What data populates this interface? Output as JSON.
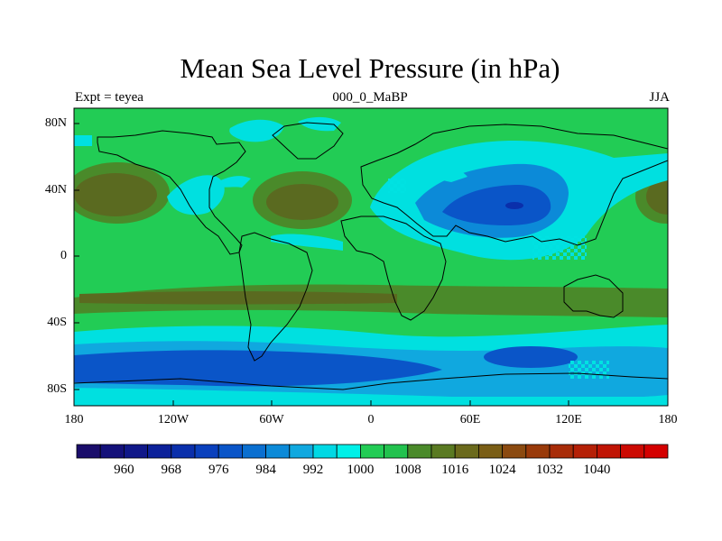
{
  "title": "Mean Sea Level Pressure (in hPa)",
  "subtitle_left": "Expt = teyea",
  "subtitle_center": "000_0_MaBP",
  "subtitle_right": "JJA",
  "y_ticks": [
    {
      "value": 80,
      "label": "80N"
    },
    {
      "value": 40,
      "label": "40N"
    },
    {
      "value": 0,
      "label": "0"
    },
    {
      "value": -40,
      "label": "40S"
    },
    {
      "value": -80,
      "label": "80S"
    }
  ],
  "x_ticks": [
    {
      "value": -180,
      "label": "180"
    },
    {
      "value": -120,
      "label": "120W"
    },
    {
      "value": -60,
      "label": "60W"
    },
    {
      "value": 0,
      "label": "0"
    },
    {
      "value": 60,
      "label": "60E"
    },
    {
      "value": 120,
      "label": "120E"
    },
    {
      "value": 180,
      "label": "180"
    }
  ],
  "map_extent": {
    "lon": [
      -180,
      180
    ],
    "lat": [
      -90,
      90
    ]
  },
  "colorbar": {
    "colors": [
      "#1a0d6b",
      "#14117a",
      "#101889",
      "#0c219a",
      "#0a2fab",
      "#0a40bd",
      "#0a55c8",
      "#0a6fd0",
      "#0c8ad8",
      "#10a8df",
      "#00d8e4",
      "#00f0e8",
      "#22cc55",
      "#22c24e",
      "#4a8a2a",
      "#5a7a22",
      "#6b6a1c",
      "#7a5e16",
      "#8b4a10",
      "#993a0a",
      "#a82c08",
      "#b52006",
      "#c01404",
      "#cc0a02",
      "#d40000"
    ],
    "labels": [
      "960",
      "968",
      "976",
      "984",
      "992",
      "1000",
      "1008",
      "1016",
      "1024",
      "1032",
      "1040"
    ]
  }
}
